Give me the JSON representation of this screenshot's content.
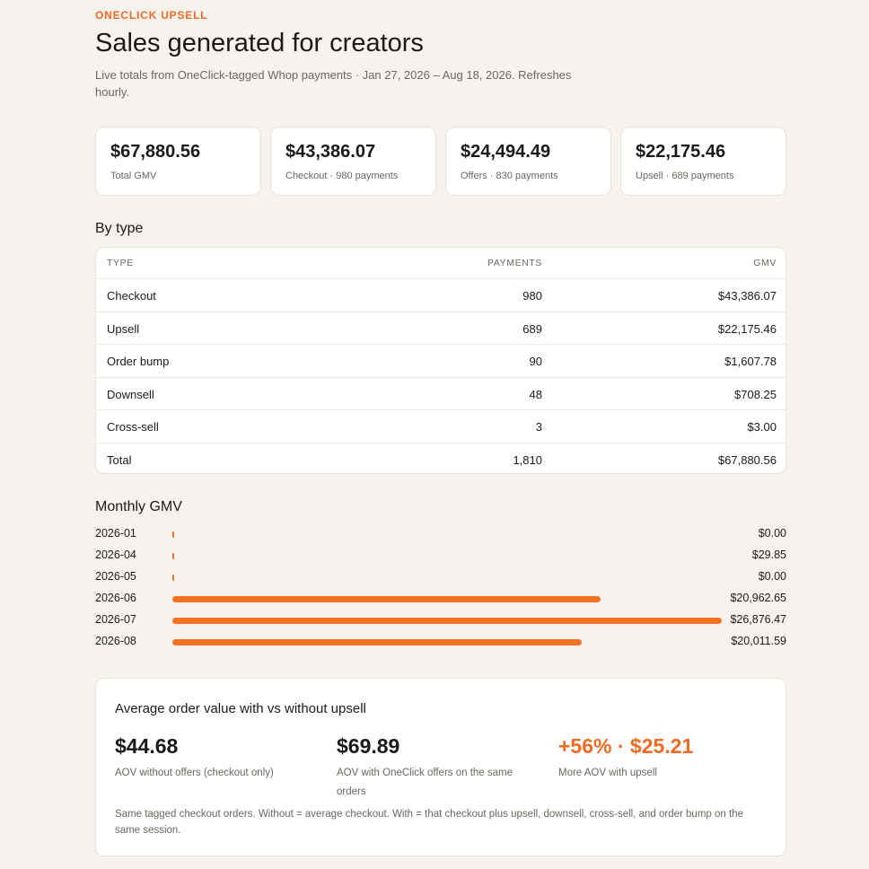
{
  "header": {
    "eyebrow": "ONECLICK UPSELL",
    "title": "Sales generated for creators",
    "subtitle": "Live totals from OneClick-tagged Whop payments · Jan 27, 2026 – Aug 18, 2026. Refreshes hourly."
  },
  "stats": [
    {
      "value": "$67,880.56",
      "label": "Total GMV"
    },
    {
      "value": "$43,386.07",
      "label": "Checkout · 980 payments"
    },
    {
      "value": "$24,494.49",
      "label": "Offers · 830 payments"
    },
    {
      "value": "$22,175.46",
      "label": "Upsell · 689 payments"
    }
  ],
  "by_type": {
    "title": "By type",
    "columns": [
      "TYPE",
      "PAYMENTS",
      "GMV"
    ],
    "rows": [
      [
        "Checkout",
        "980",
        "$43,386.07"
      ],
      [
        "Upsell",
        "689",
        "$22,175.46"
      ],
      [
        "Order bump",
        "90",
        "$1,607.78"
      ],
      [
        "Downsell",
        "48",
        "$708.25"
      ],
      [
        "Cross-sell",
        "3",
        "$3.00"
      ],
      [
        "Total",
        "1,810",
        "$67,880.56"
      ]
    ]
  },
  "monthly": {
    "title": "Monthly GMV",
    "rows": [
      {
        "month": "2026-01",
        "value": 0,
        "label": "$0.00"
      },
      {
        "month": "2026-04",
        "value": 29.85,
        "label": "$29.85"
      },
      {
        "month": "2026-05",
        "value": 0,
        "label": "$0.00"
      },
      {
        "month": "2026-06",
        "value": 20962.65,
        "label": "$20,962.65"
      },
      {
        "month": "2026-07",
        "value": 26876.47,
        "label": "$26,876.47"
      },
      {
        "month": "2026-08",
        "value": 20011.59,
        "label": "$20,011.59"
      }
    ]
  },
  "aov": {
    "title": "Average order value with vs without upsell",
    "metrics": [
      {
        "value": "$44.68",
        "label": "AOV without offers (checkout only)"
      },
      {
        "value": "$69.89",
        "label": "AOV with OneClick offers on the same orders"
      },
      {
        "value": "+56% · $25.21",
        "label": "More AOV with upsell"
      }
    ],
    "note": "Same tagged checkout orders. Without = average checkout. With = that checkout plus upsell, downsell, cross-sell, and order bump on the same session."
  }
}
